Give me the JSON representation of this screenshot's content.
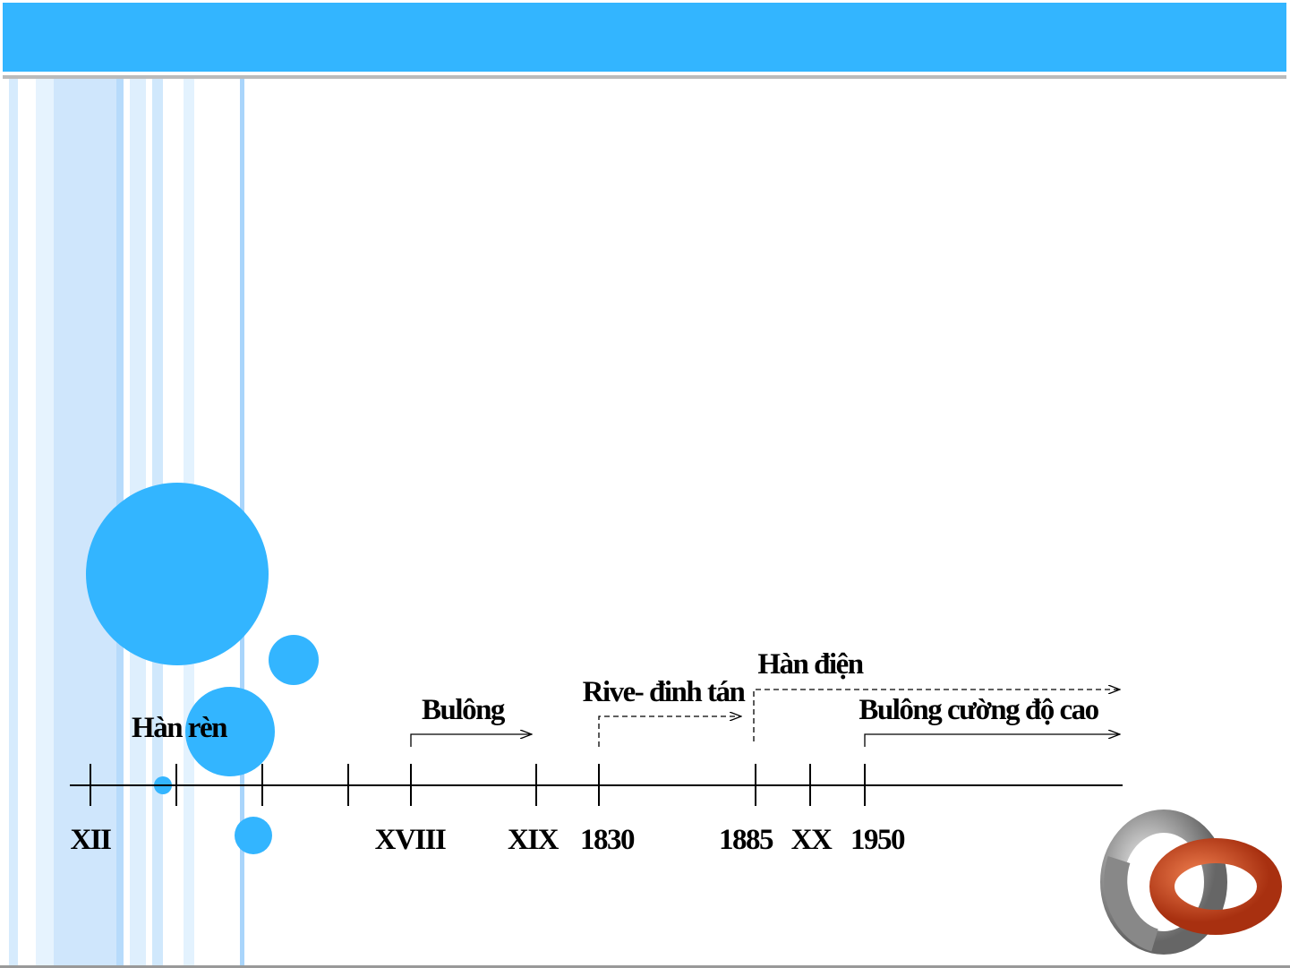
{
  "timeline": {
    "ticks": [
      "XII",
      "XVIII",
      "XIX",
      "1830",
      "1885",
      "XX",
      "1950"
    ],
    "events": [
      "Hàn rèn",
      "Bulông",
      "Rive- đinh tán",
      "Hàn điện",
      "Bulông cường độ cao"
    ]
  }
}
